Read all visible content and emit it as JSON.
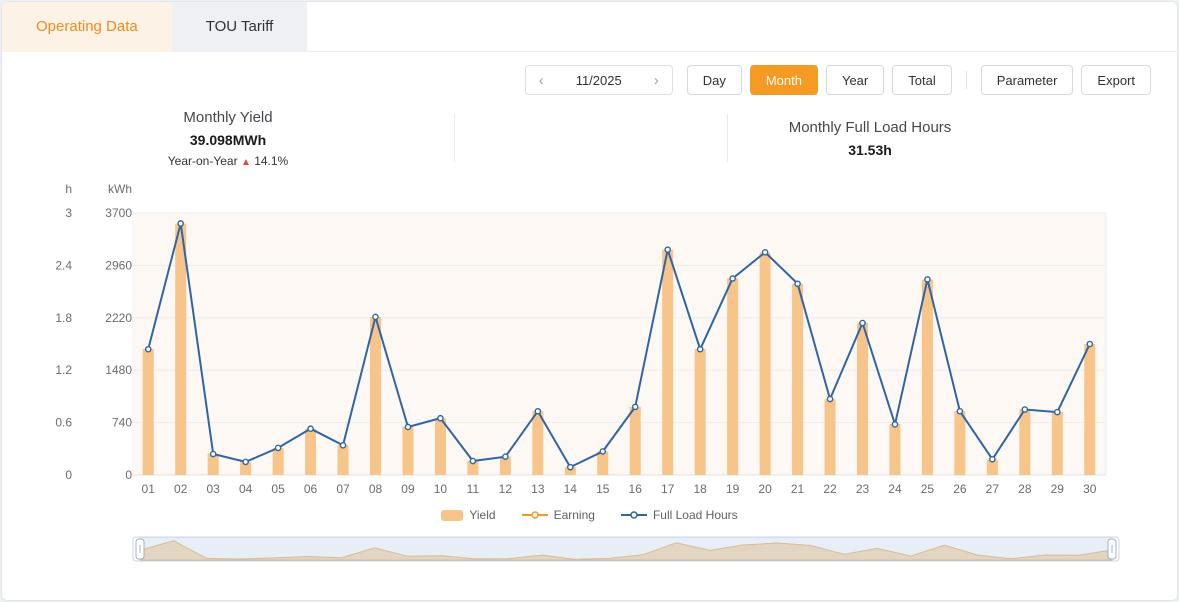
{
  "tabs": [
    {
      "label": "Operating Data",
      "active": true
    },
    {
      "label": "TOU Tariff",
      "active": false
    }
  ],
  "toolbar": {
    "prev_icon": "‹",
    "next_icon": "›",
    "date": "11/2025",
    "day": "Day",
    "month": "Month",
    "year": "Year",
    "total": "Total",
    "parameter": "Parameter",
    "export": "Export"
  },
  "stats": {
    "yield": {
      "title": "Monthly Yield",
      "value": "39.098MWh",
      "yoy_label": "Year-on-Year",
      "yoy_arrow": "▲",
      "yoy_value": "14.1%"
    },
    "full_load_hours": {
      "title": "Monthly Full Load Hours",
      "value": "31.53h"
    }
  },
  "chart_data": {
    "type": "bar",
    "title": "",
    "x": [
      "01",
      "02",
      "03",
      "04",
      "05",
      "06",
      "07",
      "08",
      "09",
      "10",
      "11",
      "12",
      "13",
      "14",
      "15",
      "16",
      "17",
      "18",
      "19",
      "20",
      "21",
      "22",
      "23",
      "24",
      "25",
      "26",
      "27",
      "28",
      "29",
      "30"
    ],
    "series": [
      {
        "name": "Yield",
        "type": "bar",
        "y_axis": "kWh",
        "color": "#f7c489",
        "values": [
          1780,
          3550,
          300,
          180,
          380,
          650,
          420,
          2230,
          680,
          800,
          200,
          260,
          900,
          110,
          330,
          960,
          3180,
          1780,
          2780,
          3140,
          2700,
          1070,
          2150,
          720,
          2760,
          900,
          220,
          930,
          890,
          1850
        ]
      },
      {
        "name": "Earning",
        "type": "line",
        "y_axis": "kWh",
        "color": "#f59a23",
        "values": []
      },
      {
        "name": "Full Load Hours",
        "type": "line",
        "y_axis": "h",
        "color": "#2f65a7",
        "values": [
          1.44,
          2.88,
          0.24,
          0.15,
          0.31,
          0.53,
          0.34,
          1.81,
          0.55,
          0.65,
          0.16,
          0.21,
          0.73,
          0.09,
          0.27,
          0.78,
          2.58,
          1.44,
          2.25,
          2.55,
          2.19,
          0.87,
          1.74,
          0.58,
          2.24,
          0.73,
          0.18,
          0.75,
          0.72,
          1.5
        ]
      }
    ],
    "y_axes": [
      {
        "name": "h",
        "min": 0,
        "max": 3,
        "tick_labels": [
          "0",
          "0.6",
          "1.2",
          "1.8",
          "2.4",
          "3"
        ]
      },
      {
        "name": "kWh",
        "min": 0,
        "max": 3700,
        "tick_labels": [
          "0",
          "740",
          "1480",
          "2220",
          "2960",
          "3700"
        ]
      }
    ],
    "legend": [
      "Yield",
      "Earning",
      "Full Load Hours"
    ],
    "grid": true,
    "legend_position": "bottom"
  },
  "colors": {
    "accent_orange": "#f59a23",
    "tab_active_bg": "#fdf2e6",
    "tab_active_text": "#ee8d1f",
    "bar": "#f7c489",
    "line_blue": "#2f65a7",
    "earning_orange": "#f59a23",
    "plot_bg": "#fdf8f3",
    "grid": "#ededed",
    "axis_line": "#e0e0e0",
    "axis_text": "#6b6b6b",
    "yoy_up": "#e64545",
    "zoom_area_fill": "#f8e2c2",
    "zoom_area_stroke": "#edc28d",
    "zoom_overlay": "rgba(128,158,202,0.18)",
    "zoom_border": "#cdd6e8",
    "zoom_handle": "#9fb0c8"
  }
}
